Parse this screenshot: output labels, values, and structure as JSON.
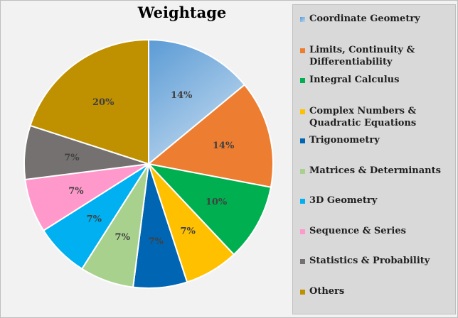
{
  "chart_data": {
    "type": "pie",
    "title": "Weightage",
    "categories": [
      "Coordinate Geometry",
      "Limits, Continuity & Differentiability",
      "Integral Calculus",
      "Complex Numbers & Quadratic Equations",
      "Trigonometry",
      "Matrices & Determinants",
      "3D Geometry",
      "Sequence & Series",
      "Statistics & Probability",
      "Others"
    ],
    "legend_lines": [
      [
        "Coordinate Geometry"
      ],
      [
        "Limits, Continuity &",
        "Differentiability"
      ],
      [
        "Integral Calculus"
      ],
      [
        "Complex Numbers &",
        "Quadratic Equations"
      ],
      [
        "Trigonometry"
      ],
      [
        "Matrices & Determinants"
      ],
      [
        "3D Geometry"
      ],
      [
        "Sequence & Series"
      ],
      [
        "Statistics & Probability"
      ],
      [
        "Others"
      ]
    ],
    "values": [
      14,
      14,
      10,
      7,
      7,
      7,
      7,
      7,
      7,
      20
    ],
    "data_labels": [
      "14%",
      "14%",
      "10%",
      "7%",
      "7%",
      "7%",
      "7%",
      "7%",
      "7%",
      "20%"
    ],
    "colors": [
      "#9dc3e6",
      "#ed7d31",
      "#00b050",
      "#ffc000",
      "#0066b3",
      "#a9d18e",
      "#00b0f0",
      "#ff99cc",
      "#767171",
      "#bf9000"
    ],
    "legend_position": "right"
  }
}
